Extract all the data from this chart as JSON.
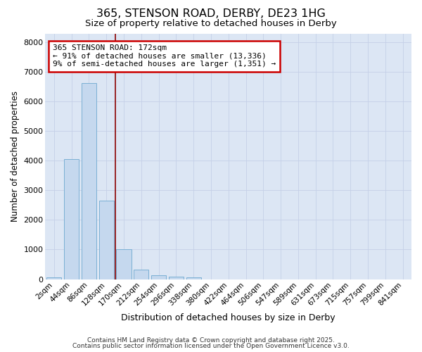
{
  "title": "365, STENSON ROAD, DERBY, DE23 1HG",
  "subtitle": "Size of property relative to detached houses in Derby",
  "xlabel": "Distribution of detached houses by size in Derby",
  "ylabel": "Number of detached properties",
  "bar_color": "#c5d8ee",
  "bar_edge_color": "#7aafd4",
  "categories": [
    "2sqm",
    "44sqm",
    "86sqm",
    "128sqm",
    "170sqm",
    "212sqm",
    "254sqm",
    "296sqm",
    "338sqm",
    "380sqm",
    "422sqm",
    "464sqm",
    "506sqm",
    "547sqm",
    "589sqm",
    "631sqm",
    "673sqm",
    "715sqm",
    "757sqm",
    "799sqm",
    "841sqm"
  ],
  "values": [
    50,
    4050,
    6620,
    2650,
    1000,
    325,
    120,
    80,
    50,
    0,
    0,
    0,
    0,
    0,
    0,
    0,
    0,
    0,
    0,
    0,
    0
  ],
  "ylim": [
    0,
    8300
  ],
  "yticks": [
    0,
    1000,
    2000,
    3000,
    4000,
    5000,
    6000,
    7000,
    8000
  ],
  "vline_x": 3.5,
  "vline_color": "#8b0000",
  "annotation_text": "365 STENSON ROAD: 172sqm\n← 91% of detached houses are smaller (13,336)\n9% of semi-detached houses are larger (1,351) →",
  "annotation_box_facecolor": "#ffffff",
  "annotation_box_edgecolor": "#cc0000",
  "grid_color": "#c5d0e8",
  "plot_bg_color": "#dce6f4",
  "fig_bg_color": "#ffffff",
  "footer1": "Contains HM Land Registry data © Crown copyright and database right 2025.",
  "footer2": "Contains public sector information licensed under the Open Government Licence v3.0."
}
